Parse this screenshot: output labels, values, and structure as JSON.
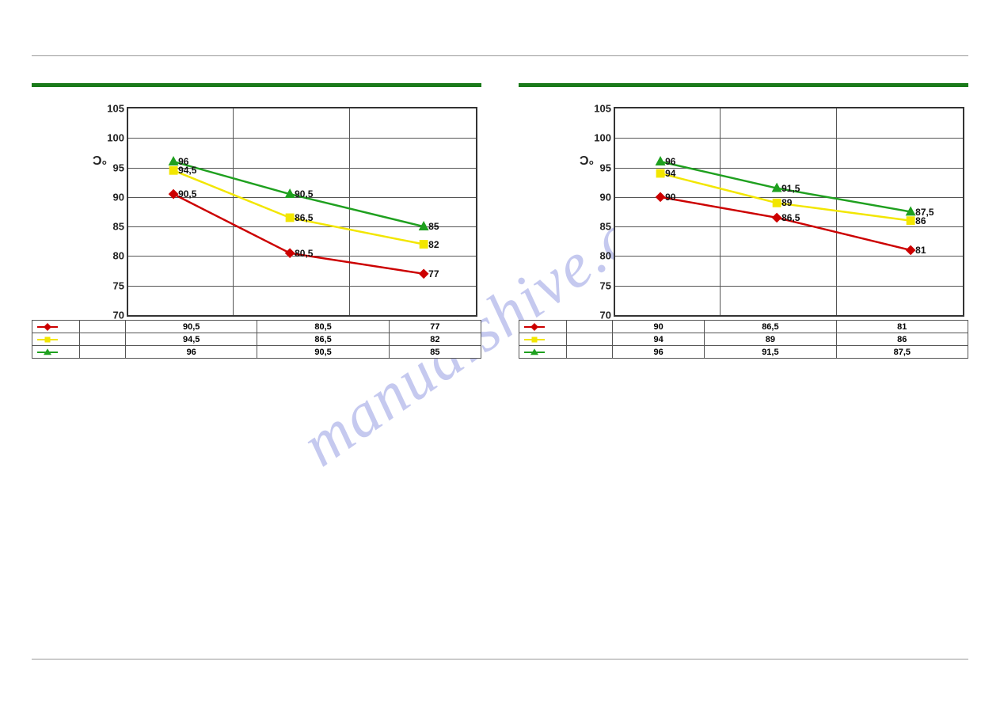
{
  "watermark_text": "manualshive.com",
  "charts": [
    {
      "ylabel": "°C",
      "ylim": [
        70,
        105
      ],
      "ytick_step": 5,
      "yticks": [
        70,
        75,
        80,
        85,
        90,
        95,
        100,
        105
      ],
      "x_positions_pct": [
        13,
        46.5,
        85
      ],
      "vgrid_pct": [
        30,
        63.5
      ],
      "series": [
        {
          "color": "#cc0000",
          "marker": "diamond",
          "values": [
            90.5,
            80.5,
            77
          ],
          "labels": [
            "90,5",
            "80,5",
            "77"
          ]
        },
        {
          "color": "#f2e600",
          "marker": "square",
          "values": [
            94.5,
            86.5,
            82
          ],
          "labels": [
            "94,5",
            "86,5",
            "82"
          ]
        },
        {
          "color": "#1fa01f",
          "marker": "triangle",
          "values": [
            96,
            90.5,
            85
          ],
          "labels": [
            "96",
            "90,5",
            "85"
          ]
        }
      ],
      "table": {
        "rows": [
          [
            "90,5",
            "80,5",
            "77"
          ],
          [
            "94,5",
            "86,5",
            "82"
          ],
          [
            "96",
            "90,5",
            "85"
          ]
        ]
      }
    },
    {
      "ylabel": "°C",
      "ylim": [
        70,
        105
      ],
      "ytick_step": 5,
      "yticks": [
        70,
        75,
        80,
        85,
        90,
        95,
        100,
        105
      ],
      "x_positions_pct": [
        13,
        46.5,
        85
      ],
      "vgrid_pct": [
        30,
        63.5
      ],
      "series": [
        {
          "color": "#cc0000",
          "marker": "diamond",
          "values": [
            90,
            86.5,
            81
          ],
          "labels": [
            "90",
            "86,5",
            "81"
          ]
        },
        {
          "color": "#f2e600",
          "marker": "square",
          "values": [
            94,
            89,
            86
          ],
          "labels": [
            "94",
            "89",
            "86"
          ]
        },
        {
          "color": "#1fa01f",
          "marker": "triangle",
          "values": [
            96,
            91.5,
            87.5
          ],
          "labels": [
            "96",
            "91,5",
            "87,5"
          ]
        }
      ],
      "table": {
        "rows": [
          [
            "90",
            "86,5",
            "81"
          ],
          [
            "94",
            "89",
            "86"
          ],
          [
            "96",
            "91,5",
            "87,5"
          ]
        ]
      }
    }
  ],
  "styling": {
    "green_bar_color": "#1a7a1a",
    "grid_color": "#555555",
    "axis_color": "#333333",
    "line_width": 2.5,
    "marker_size": 8,
    "background": "#ffffff",
    "label_fontsize": 12,
    "tick_fontsize": 13
  }
}
